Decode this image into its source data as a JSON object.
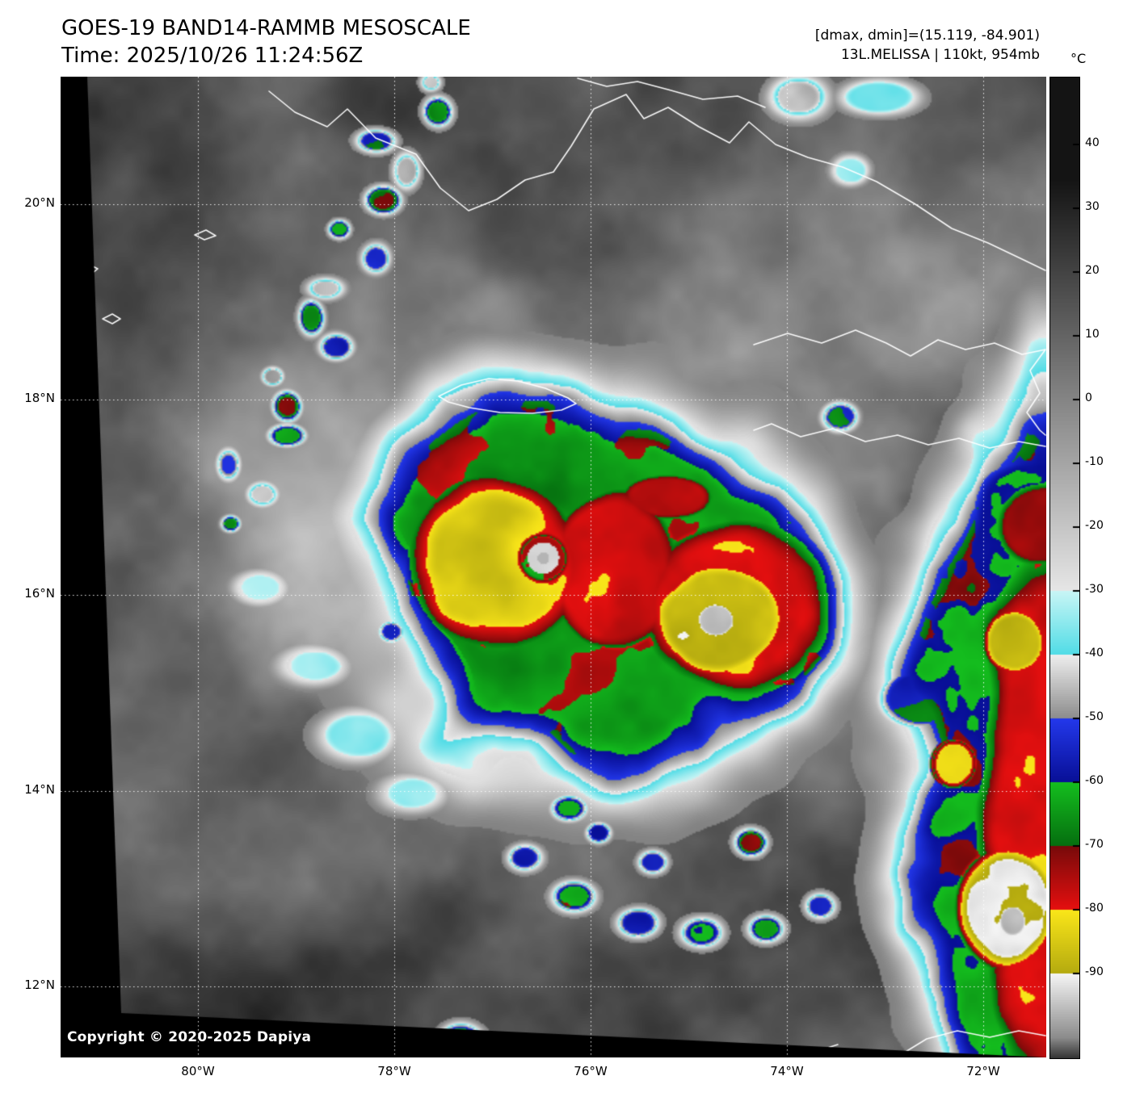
{
  "header": {
    "title": "GOES-19 BAND14-RAMMB MESOSCALE",
    "time": "Time: 2025/10/26 11:24:56Z",
    "range": "[dmax, dmin]=(15.119, -84.901)",
    "storm": "13L.MELISSA | 110kt, 954mb"
  },
  "colorbar": {
    "unit": "°C",
    "ticks": [
      40,
      30,
      20,
      10,
      0,
      -10,
      -20,
      -30,
      -40,
      -50,
      -60,
      -70,
      -80,
      -90
    ],
    "segments": [
      {
        "from": 40,
        "to": -30,
        "style": "grayscale-dark-to-light"
      },
      {
        "from": -30,
        "to": -40,
        "color_top": "#c8f5f5",
        "color_bottom": "#50dce6"
      },
      {
        "from": -40,
        "to": -50,
        "color_top": "#eeeeee",
        "color_bottom": "#8c8c8c"
      },
      {
        "from": -50,
        "to": -60,
        "color_top": "#2338eb",
        "color_bottom": "#080f96"
      },
      {
        "from": -60,
        "to": -70,
        "color_top": "#14be1e",
        "color_bottom": "#056e0f"
      },
      {
        "from": -70,
        "to": -80,
        "color_top": "#780a0a",
        "color_bottom": "#e60f0f"
      },
      {
        "from": -80,
        "to": -90,
        "color_top": "#fae619",
        "color_bottom": "#b4aa0f"
      },
      {
        "from": -90,
        "to": -100,
        "color_top": "#f5f5f5",
        "color_bottom": "#8c8c8c"
      }
    ]
  },
  "axes": {
    "lat_labels": [
      "20°N",
      "18°N",
      "16°N",
      "14°N",
      "12°N"
    ],
    "lon_labels": [
      "80°W",
      "78°W",
      "76°W",
      "74°W",
      "72°W"
    ]
  },
  "copyright": "Copyright © 2020-2025 Dapiya"
}
